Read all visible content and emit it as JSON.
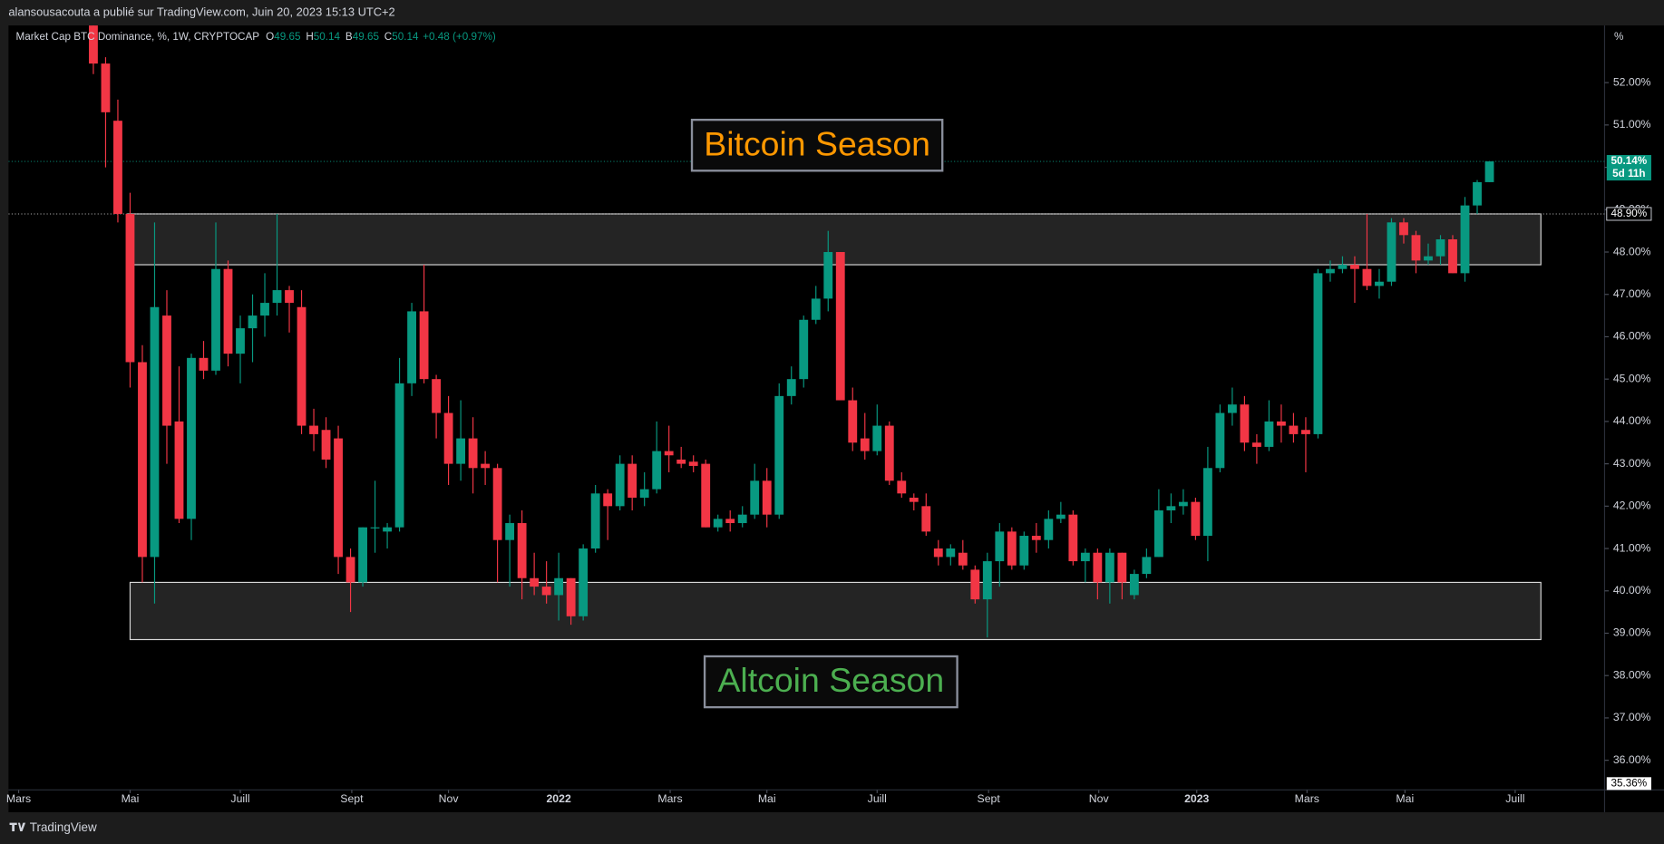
{
  "header": "alansousacouta a publié sur TradingView.com, Juin 20, 2023 15:13 UTC+2",
  "footer": "TradingView",
  "chart_data": {
    "type": "candlestick",
    "title": "Market Cap BTC Dominance, %, 1W, CRYPTOCAP",
    "legend_values": [
      {
        "key": "O",
        "value": 49.65
      },
      {
        "key": "H",
        "value": 50.14
      },
      {
        "key": "B",
        "value": 49.65
      },
      {
        "key": "C",
        "value": 50.14
      }
    ],
    "change": "+0.48 (+0.97%)",
    "y_unit": "%",
    "up_color": "#089981",
    "down_color": "#f23645",
    "open": [
      54.0,
      52.45,
      51.1,
      48.9,
      45.4,
      40.8,
      46.5,
      44.0,
      41.7,
      45.5,
      45.2,
      47.6,
      45.6,
      46.2,
      46.5,
      46.8,
      47.1,
      46.7,
      43.9,
      43.8,
      43.6,
      40.8,
      40.2,
      41.5,
      41.4,
      41.5,
      44.9,
      46.6,
      45.0,
      44.2,
      43.0,
      43.6,
      43.0,
      42.9,
      41.2,
      41.6,
      40.3,
      40.1,
      39.9,
      40.3,
      39.4,
      41.0,
      42.3,
      42.0,
      43.0,
      42.2,
      42.4,
      43.3,
      43.1,
      43.05,
      43.0,
      41.5,
      41.7,
      41.6,
      41.8,
      42.6,
      41.8,
      44.6,
      45.0,
      46.4,
      46.9,
      48.0,
      44.5,
      43.6,
      43.3,
      43.9,
      42.6,
      42.2,
      42.0,
      41.0,
      40.8,
      40.9,
      40.5,
      39.8,
      40.7,
      41.4,
      40.6,
      41.3,
      41.2,
      41.7,
      41.8,
      40.7,
      40.9,
      40.2,
      40.9,
      39.9,
      40.4,
      40.8,
      41.9,
      42.0,
      42.1,
      41.3,
      42.9,
      44.2,
      44.4,
      43.5,
      43.4,
      44.0,
      43.9,
      43.8,
      43.7,
      47.5,
      47.6,
      47.7,
      47.6,
      47.2,
      47.3,
      48.7,
      48.4,
      47.8,
      47.9,
      48.3,
      47.5,
      49.1,
      49.65
    ],
    "high": [
      54.8,
      52.6,
      51.6,
      49.4,
      45.8,
      48.7,
      47.1,
      45.3,
      45.6,
      45.9,
      48.7,
      47.8,
      46.5,
      47.0,
      47.5,
      48.9,
      47.2,
      47.1,
      44.3,
      44.1,
      43.9,
      41.0,
      41.5,
      42.6,
      41.6,
      45.5,
      46.8,
      47.7,
      45.1,
      44.6,
      44.5,
      44.1,
      43.3,
      43.0,
      41.8,
      41.9,
      40.9,
      40.7,
      40.9,
      40.3,
      41.1,
      42.5,
      42.4,
      43.2,
      43.2,
      42.8,
      44.0,
      43.9,
      43.4,
      43.2,
      43.1,
      41.8,
      41.9,
      42.0,
      43.0,
      42.9,
      44.9,
      45.3,
      46.5,
      47.2,
      48.5,
      48.0,
      44.8,
      44.2,
      44.4,
      44.0,
      42.8,
      42.3,
      42.3,
      41.2,
      41.1,
      41.2,
      40.6,
      40.9,
      41.6,
      41.5,
      41.4,
      41.6,
      41.9,
      42.1,
      41.9,
      41.0,
      41.0,
      41.0,
      40.9,
      40.5,
      41.0,
      42.4,
      42.3,
      42.4,
      42.2,
      43.4,
      44.4,
      44.8,
      44.6,
      43.7,
      44.5,
      44.4,
      44.2,
      44.1,
      47.6,
      47.8,
      47.9,
      47.9,
      48.9,
      47.6,
      48.8,
      48.8,
      48.5,
      48.2,
      48.4,
      48.4,
      49.3,
      49.7,
      50.14
    ],
    "low": [
      52.2,
      50.0,
      48.7,
      44.8,
      40.2,
      39.7,
      43.0,
      41.6,
      41.2,
      45.0,
      45.1,
      45.3,
      44.9,
      45.4,
      46.0,
      46.5,
      46.1,
      43.7,
      43.3,
      42.9,
      40.4,
      39.5,
      40.1,
      40.9,
      41.0,
      41.4,
      44.6,
      44.9,
      43.6,
      42.5,
      42.6,
      42.3,
      42.5,
      40.2,
      40.1,
      39.8,
      39.9,
      39.7,
      39.3,
      39.2,
      39.3,
      40.9,
      41.2,
      41.9,
      41.9,
      42.0,
      42.3,
      42.8,
      42.9,
      42.8,
      41.5,
      41.4,
      41.4,
      41.5,
      41.7,
      41.5,
      41.7,
      44.4,
      44.8,
      46.3,
      46.6,
      44.5,
      43.3,
      43.1,
      43.2,
      42.5,
      42.2,
      41.9,
      41.3,
      40.6,
      40.6,
      40.5,
      39.7,
      38.9,
      40.1,
      40.5,
      40.5,
      40.9,
      41.0,
      41.6,
      40.6,
      40.2,
      39.8,
      39.7,
      39.8,
      39.8,
      40.3,
      40.8,
      41.6,
      41.8,
      41.2,
      40.7,
      42.8,
      43.9,
      43.3,
      43.0,
      43.3,
      43.5,
      43.5,
      42.8,
      43.6,
      47.3,
      47.5,
      46.8,
      47.1,
      46.9,
      47.2,
      48.2,
      47.5,
      47.7,
      47.7,
      47.5,
      47.3,
      48.9,
      49.65
    ],
    "close": [
      52.45,
      51.3,
      48.9,
      45.4,
      40.8,
      46.7,
      43.9,
      41.7,
      45.5,
      45.2,
      47.6,
      45.6,
      46.2,
      46.5,
      46.8,
      47.1,
      46.8,
      43.9,
      43.7,
      43.1,
      40.8,
      40.2,
      41.5,
      41.5,
      41.5,
      44.9,
      46.6,
      45.0,
      44.2,
      43.0,
      43.6,
      42.9,
      42.9,
      41.2,
      41.6,
      40.3,
      40.1,
      39.9,
      40.3,
      39.4,
      41.0,
      42.3,
      42.0,
      43.0,
      42.2,
      42.4,
      43.3,
      43.2,
      43.0,
      42.95,
      41.5,
      41.7,
      41.6,
      41.8,
      42.6,
      41.8,
      44.6,
      45.0,
      46.4,
      46.9,
      48.0,
      44.5,
      43.5,
      43.3,
      43.9,
      42.6,
      42.3,
      42.1,
      41.4,
      40.8,
      41.0,
      40.6,
      39.8,
      40.7,
      41.4,
      40.6,
      41.3,
      41.2,
      41.7,
      41.8,
      40.7,
      40.9,
      40.2,
      40.9,
      40.2,
      40.4,
      40.8,
      41.9,
      42.0,
      42.1,
      41.3,
      42.9,
      44.2,
      44.4,
      43.5,
      43.4,
      44.0,
      43.9,
      43.7,
      43.7,
      47.5,
      47.6,
      47.7,
      47.6,
      47.2,
      47.3,
      48.7,
      48.4,
      47.8,
      47.9,
      48.3,
      47.5,
      49.1,
      49.65,
      50.14
    ],
    "xlim": [
      -6.93,
      123.4
    ],
    "xticks": [
      {
        "value": -6.1,
        "label": "Mars"
      },
      {
        "value": 3.0,
        "label": "Mai"
      },
      {
        "value": 12.0,
        "label": "Juill"
      },
      {
        "value": 21.1,
        "label": "Sept"
      },
      {
        "value": 29.0,
        "label": "Nov"
      },
      {
        "value": 38.0,
        "label": "2022"
      },
      {
        "value": 47.1,
        "label": "Mars"
      },
      {
        "value": 55.0,
        "label": "Mai"
      },
      {
        "value": 64.0,
        "label": "Juill"
      },
      {
        "value": 73.1,
        "label": "Sept"
      },
      {
        "value": 82.1,
        "label": "Nov"
      },
      {
        "value": 90.1,
        "label": "2023"
      },
      {
        "value": 99.1,
        "label": "Mars"
      },
      {
        "value": 107.1,
        "label": "Mai"
      },
      {
        "value": 116.1,
        "label": "Juill"
      }
    ],
    "ylim": [
      35.3,
      53.35
    ],
    "yticks": [
      {
        "value": 36,
        "label": "36.00%"
      },
      {
        "value": 37,
        "label": "37.00%"
      },
      {
        "value": 38,
        "label": "38.00%"
      },
      {
        "value": 39,
        "label": "39.00%"
      },
      {
        "value": 40,
        "label": "40.00%"
      },
      {
        "value": 41,
        "label": "41.00%"
      },
      {
        "value": 42,
        "label": "42.00%"
      },
      {
        "value": 43,
        "label": "43.00%"
      },
      {
        "value": 44,
        "label": "44.00%"
      },
      {
        "value": 45,
        "label": "45.00%"
      },
      {
        "value": 46,
        "label": "46.00%"
      },
      {
        "value": 47,
        "label": "47.00%"
      },
      {
        "value": 48,
        "label": "48.00%"
      },
      {
        "value": 49,
        "label": "49.00%"
      },
      {
        "value": 50,
        "label": "50.00%"
      },
      {
        "value": 51,
        "label": "51.00%"
      },
      {
        "value": 52,
        "label": "52.00%"
      }
    ],
    "zones": [
      {
        "low": 47.7,
        "high": 48.9,
        "x0": 2.8,
        "x1": 118.2
      },
      {
        "low": 38.85,
        "high": 40.2,
        "x0": 3.0,
        "x1": 118.2
      }
    ],
    "annotations": [
      {
        "text": "Bitcoin Season",
        "color": "#ff9800"
      },
      {
        "text": "Altcoin Season",
        "color": "#4caf50"
      }
    ],
    "price_labels": [
      {
        "value": 50.14,
        "label": "50.14%",
        "sub": "5d 11h",
        "color": "#089981",
        "line": true
      },
      {
        "value": 48.9,
        "label": "48.90%",
        "color": "#000000",
        "line": true
      },
      {
        "value": 35.36,
        "label": "35.36%",
        "color": "#ffffff",
        "line": false
      }
    ]
  }
}
